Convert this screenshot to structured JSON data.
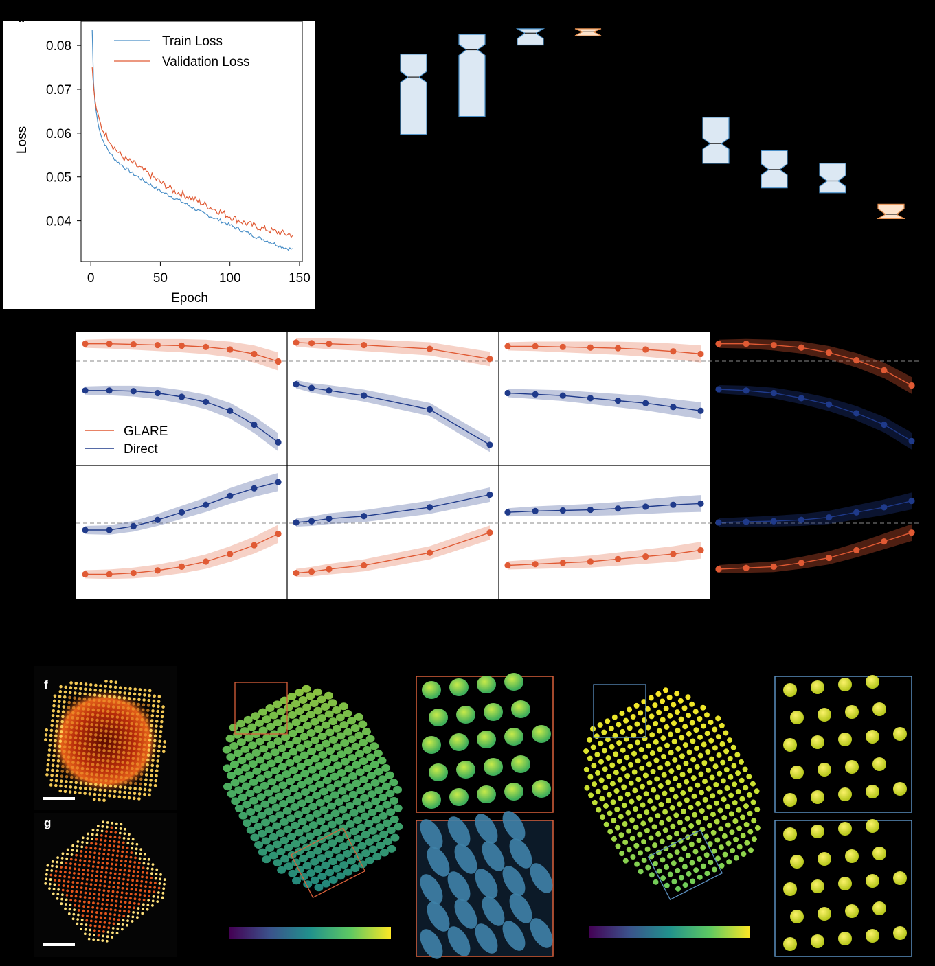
{
  "panel_labels": {
    "a": "a",
    "f": "f",
    "g": "g"
  },
  "colors": {
    "train": "#4a8fc7",
    "validation": "#e05a34",
    "glare": "#e05a34",
    "direct": "#1f3a8a",
    "box_blue_fill": "#dce8f3",
    "box_blue_edge": "#4a8fc7",
    "box_orange_fill": "#fde3cc",
    "box_orange_edge": "#e59050",
    "inset_orange": "#d9603a",
    "inset_blue": "#5b8fc0"
  },
  "chart_data": [
    {
      "type": "line",
      "xlabel": "Epoch",
      "ylabel": "Loss",
      "xlim": [
        -7,
        152
      ],
      "ylim": [
        0.0307,
        0.0855
      ],
      "xticks": [
        0,
        50,
        100,
        150
      ],
      "yticks": [
        0.04,
        0.05,
        0.06,
        0.07,
        0.08
      ],
      "ytick_labels": [
        "0.04",
        "0.05",
        "0.06",
        "0.07",
        "0.08"
      ],
      "legend_position": "top-right",
      "series": [
        {
          "name": "Train Loss",
          "x": [
            1,
            2,
            3,
            5,
            8,
            12,
            16,
            20,
            25,
            30,
            40,
            50,
            60,
            70,
            80,
            90,
            100,
            110,
            120,
            130,
            140,
            145
          ],
          "values": [
            0.0835,
            0.0715,
            0.0668,
            0.0625,
            0.0588,
            0.0563,
            0.0545,
            0.0532,
            0.052,
            0.0508,
            0.0488,
            0.0468,
            0.0452,
            0.0436,
            0.0418,
            0.0405,
            0.039,
            0.0376,
            0.0362,
            0.035,
            0.0338,
            0.0335
          ]
        },
        {
          "name": "Validation Loss",
          "x": [
            1,
            2,
            3,
            5,
            8,
            12,
            16,
            20,
            25,
            30,
            40,
            50,
            60,
            70,
            80,
            90,
            100,
            110,
            120,
            130,
            140,
            145
          ],
          "values": [
            0.075,
            0.0705,
            0.0675,
            0.064,
            0.061,
            0.0592,
            0.057,
            0.0555,
            0.054,
            0.0532,
            0.051,
            0.0488,
            0.0468,
            0.0455,
            0.044,
            0.0425,
            0.041,
            0.0396,
            0.0386,
            0.0377,
            0.037,
            0.0368
          ]
        }
      ]
    },
    {
      "type": "box",
      "boxes": [
        {
          "group": "blue",
          "q1": 0.0597,
          "median": 0.0728,
          "q3": 0.078
        },
        {
          "group": "blue",
          "q1": 0.0638,
          "median": 0.079,
          "q3": 0.0825
        },
        {
          "group": "blue",
          "q1": 0.0801,
          "median": 0.0828,
          "q3": 0.0838
        },
        {
          "group": "orange",
          "q1": 0.0822,
          "median": 0.0831,
          "q3": 0.0838
        },
        {
          "group": "blue",
          "q1": 0.0531,
          "median": 0.0576,
          "q3": 0.0636
        },
        {
          "group": "blue",
          "q1": 0.0475,
          "median": 0.0517,
          "q3": 0.056
        },
        {
          "group": "blue",
          "q1": 0.0464,
          "median": 0.0491,
          "q3": 0.0531
        },
        {
          "group": "orange",
          "q1": 0.0405,
          "median": 0.0415,
          "q3": 0.0438
        }
      ]
    },
    {
      "type": "line",
      "legend": [
        {
          "name": "GLARE"
        },
        {
          "name": "Direct"
        }
      ],
      "top_row": [
        {
          "x": [
            1,
            2,
            3,
            4,
            5,
            6,
            7,
            8,
            9
          ],
          "glare": [
            0.92,
            0.92,
            0.915,
            0.91,
            0.905,
            0.895,
            0.875,
            0.84,
            0.78
          ],
          "direct": [
            0.55,
            0.55,
            0.545,
            0.53,
            0.5,
            0.46,
            0.39,
            0.28,
            0.14
          ]
        },
        {
          "x": [
            1,
            2,
            3,
            4,
            5,
            6
          ],
          "glare": [
            0.93,
            0.925,
            0.92,
            0.91,
            0.88,
            0.8
          ],
          "direct": [
            0.6,
            0.57,
            0.55,
            0.51,
            0.4,
            0.12
          ]
        },
        {
          "x": [
            1,
            2,
            3,
            4,
            5,
            6,
            7,
            8
          ],
          "glare": [
            0.9,
            0.9,
            0.895,
            0.89,
            0.885,
            0.875,
            0.86,
            0.84
          ],
          "direct": [
            0.53,
            0.52,
            0.51,
            0.49,
            0.47,
            0.45,
            0.42,
            0.39
          ]
        },
        {
          "x": [
            1,
            2,
            3,
            4,
            5,
            6,
            7,
            8
          ],
          "glare": [
            0.92,
            0.92,
            0.91,
            0.89,
            0.85,
            0.79,
            0.71,
            0.59
          ],
          "direct": [
            0.56,
            0.55,
            0.53,
            0.49,
            0.44,
            0.37,
            0.28,
            0.15
          ]
        }
      ],
      "bottom_row": [
        {
          "x": [
            1,
            2,
            3,
            4,
            5,
            6,
            7,
            8,
            9
          ],
          "direct": [
            0.5,
            0.5,
            0.53,
            0.58,
            0.64,
            0.7,
            0.77,
            0.83,
            0.88
          ],
          "glare": [
            0.15,
            0.15,
            0.16,
            0.18,
            0.21,
            0.25,
            0.31,
            0.38,
            0.47
          ]
        },
        {
          "x": [
            1,
            2,
            3,
            4,
            5,
            6
          ],
          "direct": [
            0.56,
            0.57,
            0.59,
            0.61,
            0.68,
            0.78
          ],
          "glare": [
            0.16,
            0.17,
            0.19,
            0.22,
            0.32,
            0.48
          ]
        },
        {
          "x": [
            1,
            2,
            3,
            4,
            5,
            6,
            7,
            8
          ],
          "direct": [
            0.64,
            0.65,
            0.655,
            0.66,
            0.67,
            0.685,
            0.7,
            0.71
          ],
          "glare": [
            0.22,
            0.23,
            0.24,
            0.25,
            0.27,
            0.29,
            0.31,
            0.34
          ]
        },
        {
          "x": [
            1,
            2,
            3,
            4,
            5,
            6,
            7,
            8
          ],
          "direct": [
            0.56,
            0.565,
            0.57,
            0.58,
            0.6,
            0.64,
            0.68,
            0.73
          ],
          "glare": [
            0.19,
            0.2,
            0.21,
            0.24,
            0.28,
            0.34,
            0.41,
            0.48
          ]
        }
      ]
    }
  ]
}
